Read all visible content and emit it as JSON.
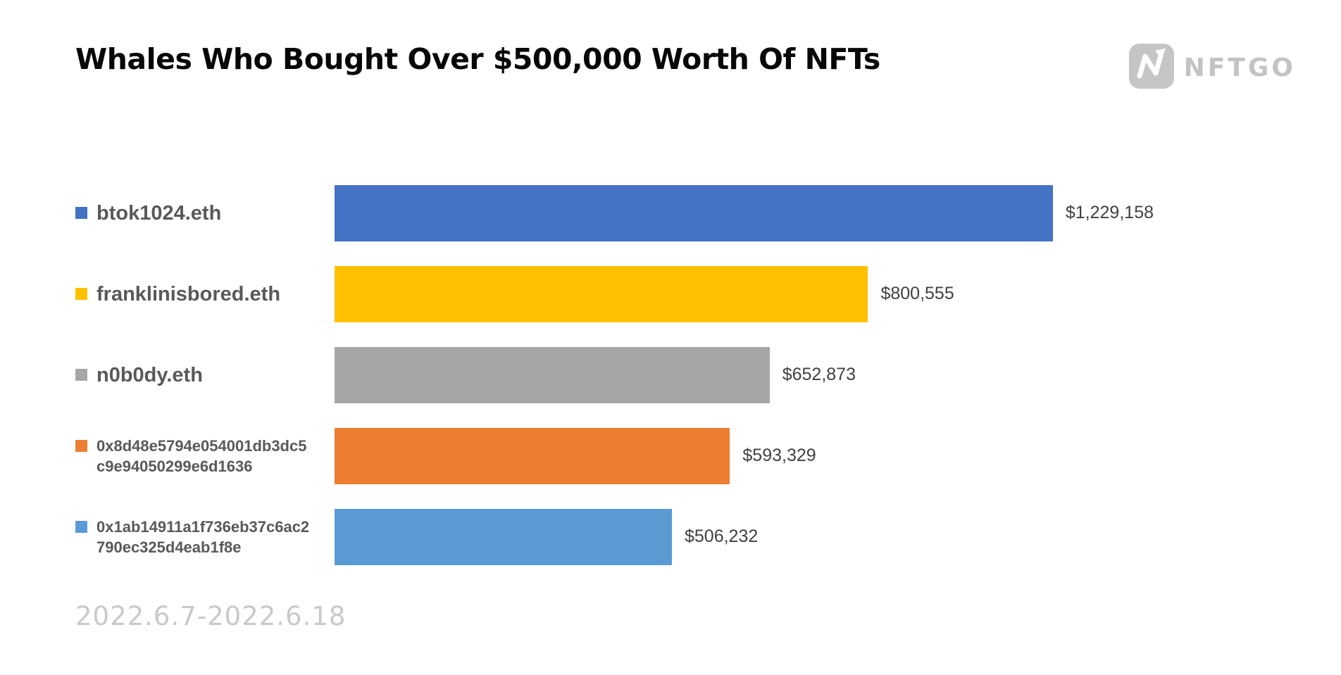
{
  "header": {
    "title": "Whales Who Bought Over $500,000 Worth Of NFTs",
    "logo": {
      "text": "NFTGO",
      "icon": "nftgo-n-arrow-icon"
    }
  },
  "footer": {
    "date_range": "2022.6.7-2022.6.18"
  },
  "colors": {
    "title_text": "#070707",
    "label_text": "#595959",
    "value_text": "#404040",
    "date_text": "#C9C9C9",
    "logo_gray": "#C3C3C3",
    "background": "#FFFFFF"
  },
  "chart_data": {
    "type": "bar",
    "orientation": "horizontal",
    "title": "Whales Who Bought Over $500,000 Worth Of NFTs",
    "categories": [
      "btok1024.eth",
      "franklinisbored.eth",
      "n0b0dy.eth",
      "0x8d48e5794e054001db3dc5c9e94050299e6d1636",
      "0x1ab14911a1f736eb37c6ac2790ec325d4eab1f8e"
    ],
    "values": [
      1229158,
      800555,
      652873,
      593329,
      506232
    ],
    "value_labels": [
      "$1,229,158",
      "$800,555",
      "$652,873",
      "$593,329",
      "$506,232"
    ],
    "bar_colors": [
      "#4472C4",
      "#FFC000",
      "#A6A6A6",
      "#ED7D31",
      "#5B9BD5"
    ],
    "xlabel": "",
    "ylabel": "",
    "xlim": [
      0,
      1229158
    ],
    "grid": false,
    "legend_position": "markers-beside-category-labels",
    "period": "2022.6.7-2022.6.18"
  }
}
